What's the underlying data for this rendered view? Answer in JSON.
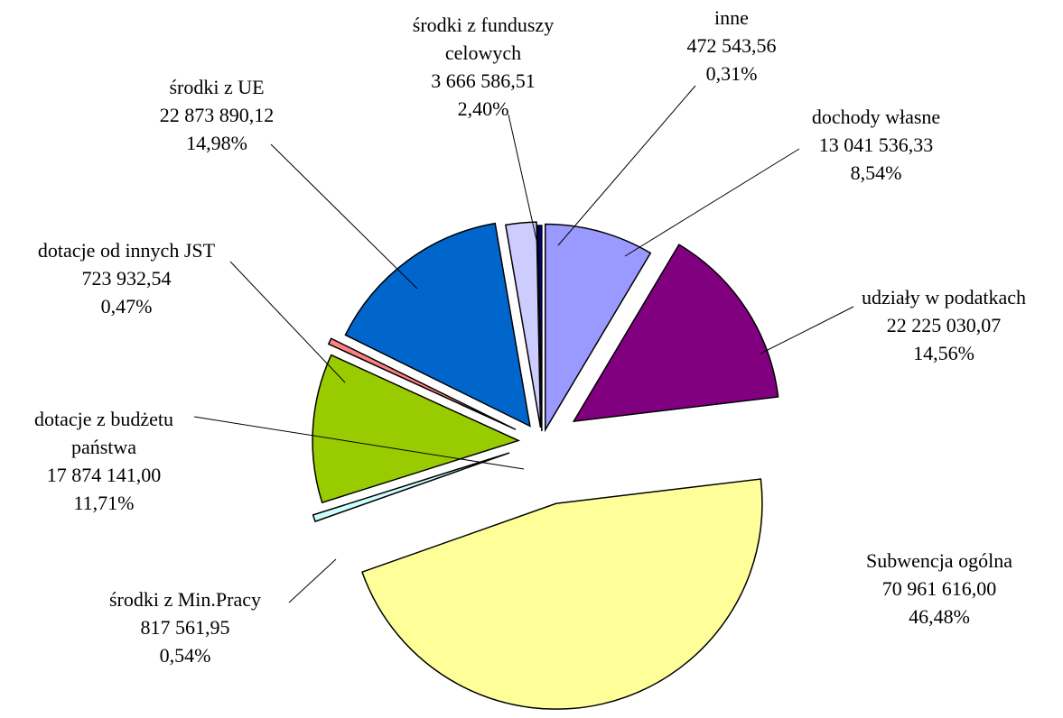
{
  "chart_data": {
    "type": "pie",
    "categories": [
      "dochody własne",
      "udziały w podatkach",
      "Subwencja ogólna",
      "środki z Min.Pracy",
      "dotacje z budżetu państwa",
      "dotacje od innych JST",
      "środki z UE",
      "środki z funduszy celowych",
      "inne"
    ],
    "values": [
      13041536.33,
      22225030.07,
      70961616.0,
      817561.95,
      17874141.0,
      723932.54,
      22873890.12,
      3666586.51,
      472543.56
    ],
    "value_labels": [
      "13 041 536,33",
      "22 225 030,07",
      "70 961 616,00",
      "817 561,95",
      "17 874 141,00",
      "723 932,54",
      "22 873 890,12",
      "3 666 586,51",
      "472 543,56"
    ],
    "percents": [
      8.54,
      14.56,
      46.48,
      0.54,
      11.71,
      0.47,
      14.98,
      2.4,
      0.31
    ],
    "percent_labels": [
      "8,54%",
      "14,56%",
      "46,48%",
      "0,54%",
      "11,71%",
      "0,47%",
      "14,98%",
      "2,40%",
      "0,31%"
    ],
    "colors": [
      "#9999ff",
      "#800080",
      "#ffff99",
      "#ccffff",
      "#99cc00",
      "#ff8080",
      "#0066cc",
      "#ccccff",
      "#000080"
    ]
  }
}
